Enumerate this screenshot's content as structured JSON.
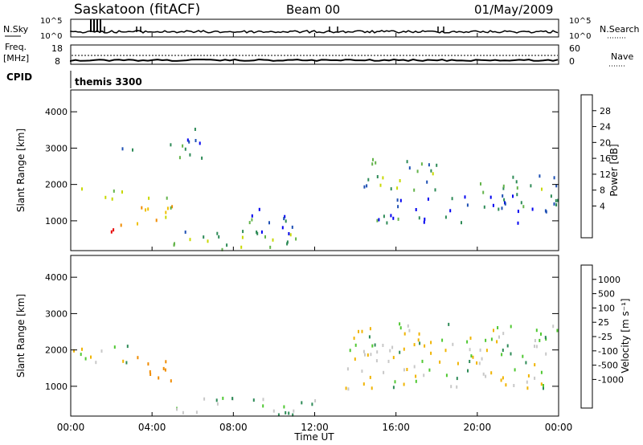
{
  "header": {
    "station": "Saskatoon (fitACF)",
    "beam": "Beam 00",
    "date": "01/May/2009"
  },
  "noise_panel": {
    "left_label": "N.Sky",
    "right_label": "N.Search",
    "top_tick_left": "10^5",
    "bottom_tick_left": "10^0",
    "top_tick_right": "10^5",
    "bottom_tick_right": "10^0"
  },
  "freq_panel": {
    "left_label_1": "Freq.",
    "left_label_2": "[MHz]",
    "left_tick_top": "18",
    "left_tick_bottom": "8",
    "right_label": "Nave",
    "right_tick_top": "60",
    "right_tick_bottom": "0"
  },
  "cpid_panel": {
    "label": "CPID",
    "value": "themis 3300"
  },
  "power_panel": {
    "ylabel": "Slant Range [km]",
    "cbar_label": "Power [dB]",
    "cbar_ticks": [
      "28",
      "24",
      "20",
      "16",
      "12",
      "8",
      "4"
    ],
    "cbar_colors": [
      "#e60000",
      "#f04b00",
      "#f08c00",
      "#f0c000",
      "#c8d800",
      "#64b44b",
      "#2e8b57",
      "#1e50b4",
      "#0000f0"
    ]
  },
  "velocity_panel": {
    "ylabel": "Slant Range [km]",
    "cbar_label": "Velocity [m s⁻¹]",
    "cbar_ticks": [
      "1000",
      "500",
      "100",
      "25",
      "-25",
      "-100",
      "-500",
      "-1000"
    ],
    "cbar_colors": [
      "#1e3ca0",
      "#2e5fb4",
      "#2e8b57",
      "#50c832",
      "#c8c8c8",
      "#c8c8c8",
      "#f0b400",
      "#f08c00",
      "#f05000",
      "#e60000"
    ]
  },
  "x_axis": {
    "ticks": [
      "00:00",
      "04:00",
      "08:00",
      "12:00",
      "16:00",
      "20:00",
      "00:00"
    ],
    "label": "Time UT"
  },
  "y_axis": {
    "ticks": [
      "1000",
      "2000",
      "3000",
      "4000"
    ]
  },
  "chart_data": [
    {
      "type": "heatmap",
      "panel": "power",
      "xlabel": "Time UT",
      "ylabel": "Slant Range [km]",
      "x_range_hours": [
        0,
        24
      ],
      "ylim": [
        180,
        4600
      ],
      "clim": [
        0,
        30
      ],
      "regions": [
        {
          "t0": 0.1,
          "t1": 2.5,
          "r0": 1500,
          "r1": 1900,
          "value": 14
        },
        {
          "t0": 1.5,
          "t1": 3.5,
          "r0": 600,
          "r1": 950,
          "value": 24
        },
        {
          "t0": 3.0,
          "t1": 5.0,
          "r0": 900,
          "r1": 1900,
          "value": 18
        },
        {
          "t0": 2.5,
          "t1": 4.5,
          "r0": 2900,
          "r1": 3100,
          "value": 6
        },
        {
          "t0": 4.5,
          "t1": 6.5,
          "r0": 2500,
          "r1": 3500,
          "value": 7
        },
        {
          "t0": 5.0,
          "t1": 12.0,
          "r0": 180,
          "r1": 700,
          "value": 10
        },
        {
          "t0": 8.0,
          "t1": 11.5,
          "r0": 600,
          "r1": 1300,
          "value": 5
        },
        {
          "t0": 13.5,
          "t1": 18.0,
          "r0": 1800,
          "r1": 2700,
          "value": 9
        },
        {
          "t0": 15.0,
          "t1": 24.0,
          "r0": 900,
          "r1": 1700,
          "value": 5
        },
        {
          "t0": 20.0,
          "t1": 24.0,
          "r0": 1600,
          "r1": 2300,
          "value": 8
        }
      ]
    },
    {
      "type": "heatmap",
      "panel": "velocity",
      "xlabel": "Time UT",
      "ylabel": "Slant Range [km]",
      "x_range_hours": [
        0,
        24
      ],
      "ylim": [
        180,
        4600
      ],
      "clim": [
        -1000,
        1000
      ],
      "regions": [
        {
          "t0": 0.1,
          "t1": 3.0,
          "r0": 1500,
          "r1": 2100,
          "value": 0
        },
        {
          "t0": 3.2,
          "t1": 5.0,
          "r0": 1000,
          "r1": 1800,
          "value": -300
        },
        {
          "t0": 5.0,
          "t1": 12.0,
          "r0": 180,
          "r1": 700,
          "value": 50
        },
        {
          "t0": 13.5,
          "t1": 24.0,
          "r0": 900,
          "r1": 2700,
          "value": 0
        }
      ]
    }
  ]
}
